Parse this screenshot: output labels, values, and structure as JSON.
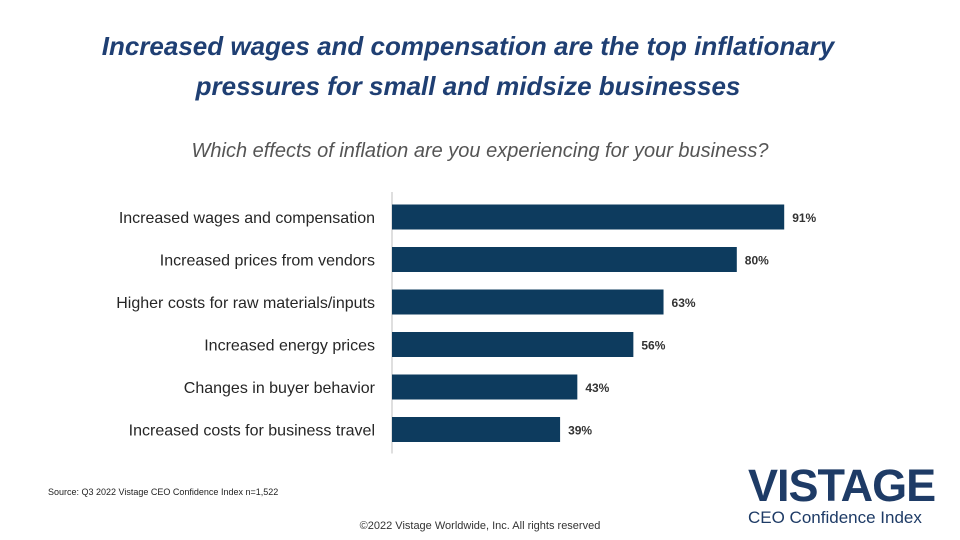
{
  "title_line1": "Increased wages and compensation are the top inflationary",
  "title_line2": "pressures for small and midsize businesses",
  "subtitle": "Which effects of inflation are you experiencing for your business?",
  "source": "Source: Q3 2022 Vistage CEO Confidence Index n=1,522",
  "copyright": "©2022 Vistage Worldwide, Inc. All rights reserved",
  "logo": {
    "main": "VISTAGE",
    "sub": "CEO Confidence Index"
  },
  "colors": {
    "title": "#1f3f73",
    "bar": "#0d3b5e",
    "axis": "#bfbfbf"
  },
  "chart_data": {
    "type": "bar",
    "orientation": "horizontal",
    "categories": [
      "Increased wages and compensation",
      "Increased prices from vendors",
      "Higher costs for raw materials/inputs",
      "Increased energy prices",
      "Changes in buyer behavior",
      "Increased costs for business travel"
    ],
    "values": [
      91,
      80,
      63,
      56,
      43,
      39
    ],
    "value_labels": [
      "91%",
      "80%",
      "63%",
      "56%",
      "43%",
      "39%"
    ],
    "unit": "%",
    "xlim": [
      0,
      100
    ],
    "grid": false,
    "legend": "none"
  }
}
